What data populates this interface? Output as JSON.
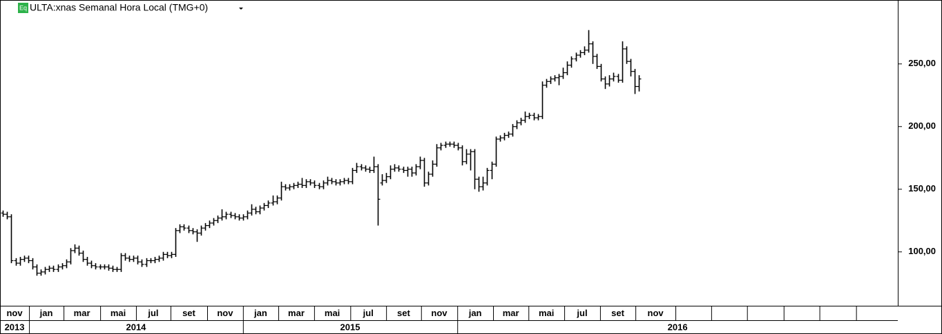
{
  "chart_data": {
    "type": "ohlc",
    "title": "ULTA:xnas Semanal Hora Local (TMG+0)",
    "icon_label": "Eq",
    "color": "#000000",
    "ylim": [
      57,
      301
    ],
    "yticks": [
      {
        "value": 100,
        "label": "100,00"
      },
      {
        "value": 150,
        "label": "150,00"
      },
      {
        "value": 200,
        "label": "200,00"
      },
      {
        "value": 250,
        "label": "250,00"
      }
    ],
    "xlim": [
      -0.7,
      212.5
    ],
    "xticks": [
      {
        "value": -0.7,
        "label": "nov"
      },
      {
        "value": 6.2,
        "label": "jan"
      },
      {
        "value": 14.4,
        "label": "mar"
      },
      {
        "value": 23.1,
        "label": "mai"
      },
      {
        "value": 31.6,
        "label": "jul"
      },
      {
        "value": 39.8,
        "label": "set"
      },
      {
        "value": 48.5,
        "label": "nov"
      },
      {
        "value": 57.0,
        "label": "jan"
      },
      {
        "value": 65.4,
        "label": "mar"
      },
      {
        "value": 73.9,
        "label": "mai"
      },
      {
        "value": 82.5,
        "label": "jul"
      },
      {
        "value": 91.0,
        "label": "set"
      },
      {
        "value": 99.3,
        "label": "nov"
      },
      {
        "value": 107.9,
        "label": "jan"
      },
      {
        "value": 116.4,
        "label": "mar"
      },
      {
        "value": 124.8,
        "label": "mai"
      },
      {
        "value": 133.3,
        "label": "jul"
      },
      {
        "value": 141.8,
        "label": "set"
      },
      {
        "value": 150.2,
        "label": "nov"
      },
      {
        "value": 159.7,
        "label": null
      },
      {
        "value": 168.2,
        "label": null
      },
      {
        "value": 176.7,
        "label": null
      },
      {
        "value": 185.4,
        "label": null
      },
      {
        "value": 193.9,
        "label": null
      },
      {
        "value": 202.6,
        "label": null
      }
    ],
    "years": [
      {
        "value": -0.7,
        "label": "2013"
      },
      {
        "value": 6.2,
        "label": "2014"
      },
      {
        "value": 57.0,
        "label": "2015"
      },
      {
        "value": 107.9,
        "label": "2016"
      }
    ],
    "open": [
      131,
      130,
      128,
      93,
      91,
      94,
      95,
      93,
      88,
      83,
      84,
      86,
      87,
      86,
      88,
      89,
      92,
      101,
      103,
      99,
      94,
      91,
      89,
      88,
      88,
      88,
      87,
      86,
      86,
      97,
      95,
      94,
      95,
      92,
      90,
      93,
      93,
      94,
      95,
      98,
      97,
      98,
      117,
      120,
      119,
      117,
      116,
      115,
      119,
      121,
      123,
      125,
      127,
      128,
      130,
      129,
      128,
      127,
      128,
      131,
      134,
      132,
      135,
      137,
      139,
      140,
      143,
      152,
      151,
      152,
      153,
      154,
      153,
      156,
      155,
      153,
      152,
      155,
      157,
      156,
      155,
      156,
      157,
      156,
      165,
      168,
      167,
      166,
      165,
      168,
      155,
      157,
      160,
      166,
      167,
      166,
      165,
      166,
      163,
      168,
      173,
      155,
      162,
      170,
      183,
      185,
      186,
      186,
      185,
      183,
      172,
      178,
      180,
      158,
      152,
      155,
      165,
      170,
      190,
      191,
      193,
      194,
      200,
      203,
      205,
      208,
      209,
      207,
      208,
      233,
      236,
      238,
      239,
      240,
      243,
      249,
      254,
      257,
      259,
      261,
      266,
      256,
      248,
      238,
      234,
      238,
      240,
      237,
      262,
      252,
      244,
      232
    ],
    "high": [
      133,
      132,
      130,
      95,
      96,
      97,
      97,
      95,
      90,
      86,
      88,
      89,
      89,
      90,
      91,
      94,
      103,
      106,
      105,
      101,
      96,
      93,
      91,
      90,
      90,
      90,
      89,
      88,
      99,
      99,
      97,
      97,
      97,
      94,
      95,
      95,
      96,
      97,
      100,
      100,
      100,
      119,
      122,
      122,
      121,
      119,
      118,
      121,
      123,
      125,
      127,
      129,
      134,
      132,
      132,
      131,
      130,
      130,
      133,
      138,
      136,
      137,
      139,
      141,
      145,
      145,
      156,
      154,
      154,
      155,
      156,
      159,
      158,
      158,
      157,
      155,
      157,
      160,
      159,
      158,
      158,
      159,
      159,
      167,
      171,
      170,
      169,
      168,
      176,
      170,
      162,
      163,
      169,
      170,
      169,
      168,
      168,
      168,
      170,
      176,
      175,
      164,
      173,
      186,
      187,
      188,
      188,
      188,
      187,
      185,
      182,
      182,
      182,
      160,
      160,
      167,
      172,
      192,
      193,
      195,
      196,
      202,
      205,
      207,
      212,
      211,
      211,
      210,
      236,
      238,
      240,
      241,
      242,
      247,
      252,
      256,
      259,
      261,
      264,
      277,
      268,
      258,
      250,
      240,
      241,
      243,
      242,
      268,
      264,
      254,
      246,
      241
    ],
    "low": [
      128,
      126,
      91,
      89,
      89,
      92,
      91,
      86,
      81,
      81,
      82,
      84,
      84,
      84,
      86,
      87,
      90,
      99,
      97,
      92,
      89,
      87,
      86,
      86,
      86,
      85,
      84,
      84,
      84,
      93,
      92,
      92,
      90,
      88,
      88,
      91,
      91,
      92,
      93,
      95,
      95,
      96,
      115,
      117,
      115,
      114,
      108,
      113,
      117,
      119,
      121,
      123,
      125,
      126,
      127,
      126,
      125,
      125,
      126,
      129,
      130,
      130,
      133,
      135,
      137,
      138,
      141,
      149,
      149,
      150,
      151,
      151,
      151,
      153,
      151,
      150,
      150,
      153,
      154,
      153,
      153,
      154,
      154,
      154,
      163,
      165,
      164,
      163,
      163,
      121,
      153,
      155,
      158,
      164,
      164,
      163,
      160,
      160,
      161,
      166,
      152,
      153,
      160,
      168,
      181,
      183,
      184,
      183,
      181,
      169,
      170,
      165,
      150,
      148,
      149,
      153,
      158,
      168,
      188,
      189,
      191,
      192,
      198,
      201,
      203,
      206,
      205,
      205,
      206,
      231,
      234,
      236,
      233,
      238,
      241,
      247,
      252,
      255,
      257,
      259,
      250,
      246,
      236,
      230,
      232,
      236,
      235,
      235,
      250,
      240,
      226,
      228
    ],
    "close": [
      130,
      128,
      93,
      91,
      94,
      95,
      93,
      88,
      83,
      84,
      86,
      87,
      86,
      88,
      89,
      92,
      101,
      103,
      99,
      94,
      91,
      89,
      88,
      88,
      88,
      87,
      86,
      86,
      97,
      95,
      94,
      95,
      92,
      90,
      93,
      93,
      94,
      95,
      98,
      97,
      98,
      117,
      120,
      119,
      117,
      116,
      115,
      119,
      121,
      123,
      125,
      127,
      128,
      130,
      129,
      128,
      127,
      128,
      131,
      134,
      132,
      135,
      137,
      139,
      140,
      143,
      152,
      151,
      152,
      153,
      154,
      153,
      156,
      155,
      153,
      152,
      155,
      157,
      156,
      155,
      156,
      157,
      156,
      165,
      168,
      167,
      166,
      165,
      168,
      142,
      157,
      160,
      166,
      167,
      166,
      165,
      166,
      163,
      168,
      173,
      155,
      162,
      170,
      183,
      185,
      186,
      186,
      185,
      183,
      172,
      178,
      180,
      158,
      152,
      155,
      165,
      170,
      190,
      191,
      193,
      194,
      200,
      203,
      205,
      208,
      209,
      207,
      208,
      233,
      236,
      238,
      239,
      240,
      243,
      249,
      254,
      257,
      259,
      261,
      266,
      256,
      248,
      238,
      234,
      238,
      240,
      237,
      262,
      252,
      244,
      232,
      238
    ]
  }
}
